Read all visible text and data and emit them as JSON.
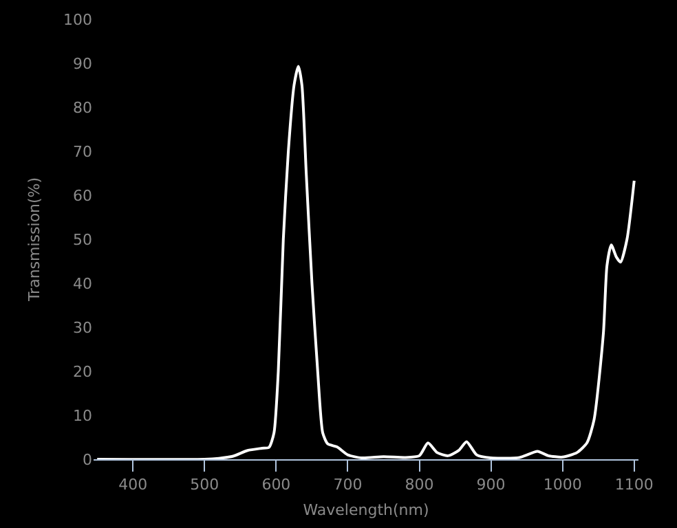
{
  "chart_data": {
    "type": "line",
    "xlabel": "Wavelength(nm)",
    "ylabel": "Transmission(%)",
    "xlim": [
      345,
      1106
    ],
    "xticks": [
      400,
      500,
      600,
      700,
      800,
      900,
      1000,
      1100
    ],
    "ylim": [
      0,
      100
    ],
    "yticks": [
      0,
      10,
      20,
      30,
      40,
      50,
      60,
      70,
      80,
      90,
      100
    ],
    "grid": false,
    "marker": "none",
    "line_style": "solid",
    "series": [
      {
        "color": "#ffffff",
        "x": [
          350,
          500,
          520,
          540,
          560,
          580,
          590,
          597,
          603,
          610,
          617,
          625,
          631,
          636,
          642,
          650,
          658,
          665,
          672,
          685,
          700,
          720,
          750,
          780,
          800,
          812,
          825,
          840,
          855,
          866,
          880,
          900,
          940,
          965,
          980,
          1000,
          1020,
          1034,
          1044,
          1057,
          1062,
          1068,
          1075,
          1081,
          1090,
          1100
        ],
        "values": [
          0,
          0,
          0.2,
          0.7,
          2,
          2.5,
          2.7,
          6,
          20,
          50,
          70,
          85,
          89.3,
          85,
          65,
          40,
          20,
          6,
          3.5,
          2.8,
          1,
          0.3,
          0.6,
          0.4,
          0.8,
          3.7,
          1.5,
          0.8,
          2,
          4,
          1,
          0.3,
          0.4,
          1.8,
          0.8,
          0.5,
          1.5,
          3.7,
          9,
          28.6,
          44,
          48.7,
          46,
          44.8,
          50,
          63.3
        ]
      }
    ]
  }
}
